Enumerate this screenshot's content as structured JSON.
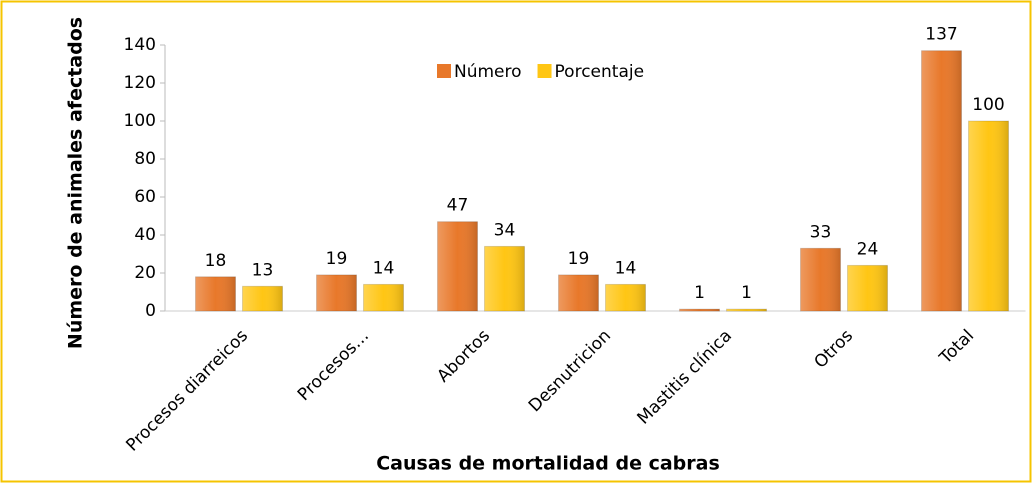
{
  "chart_data": {
    "type": "bar",
    "categories": [
      "Procesos diarreicos",
      "Procesos…",
      "Abortos",
      "Desnutricion",
      "Mastitis clínica",
      "Otros",
      "Total"
    ],
    "series": [
      {
        "name": "Número",
        "color": "#e8782a",
        "values": [
          18,
          19,
          47,
          19,
          1,
          33,
          137
        ]
      },
      {
        "name": "Porcentaje",
        "color": "#ffc614",
        "values": [
          13,
          14,
          34,
          14,
          1,
          24,
          100
        ]
      }
    ],
    "ylim": [
      0,
      140
    ],
    "yticks": [
      0,
      20,
      40,
      60,
      80,
      100,
      120,
      140
    ],
    "ylabel": "Número de animales afectados",
    "xlabel": "Causas de mortalidad de cabras",
    "grid": false,
    "legend": "top"
  }
}
